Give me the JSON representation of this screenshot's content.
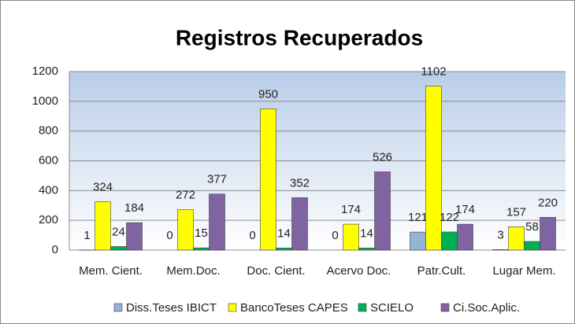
{
  "chart_data": {
    "type": "bar",
    "title": "Registros Recuperados",
    "categories": [
      "Mem. Cient.",
      "Mem.Doc.",
      "Doc. Cient.",
      "Acervo Doc.",
      "Patr.Cult.",
      "Lugar Mem."
    ],
    "series": [
      {
        "name": "Diss.Teses IBICT",
        "color": "#95b3d7",
        "values": [
          1,
          0,
          0,
          0,
          121,
          3
        ]
      },
      {
        "name": "BancoTeses CAPES",
        "color": "#ffff00",
        "values": [
          324,
          272,
          950,
          174,
          1102,
          157
        ]
      },
      {
        "name": "SCIELO",
        "color": "#00b050",
        "values": [
          24,
          15,
          14,
          14,
          122,
          58
        ]
      },
      {
        "name": "Ci.Soc.Aplic.",
        "color": "#8064a2",
        "values": [
          184,
          377,
          352,
          526,
          174,
          220
        ]
      }
    ],
    "ylim": [
      0,
      1200
    ],
    "yticks": [
      0,
      200,
      400,
      600,
      800,
      1000,
      1200
    ],
    "grid": true,
    "legend": "bottom"
  }
}
